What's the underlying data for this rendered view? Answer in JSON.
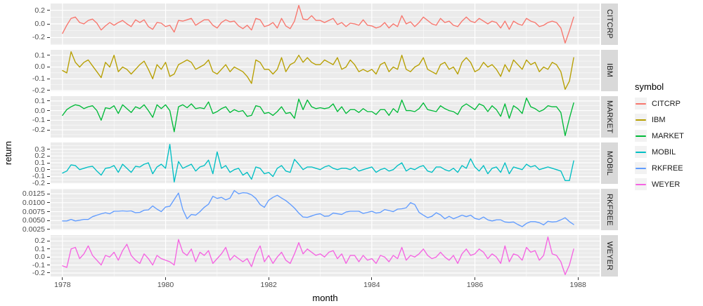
{
  "figure": {
    "xlabel": "month",
    "ylabel": "return",
    "legend_title": "symbol"
  },
  "colors": {
    "panel_bg": "#EBEBEB",
    "strip_bg": "#D9D9D9",
    "grid": "#FFFFFF",
    "axis_text": "#4D4D4D",
    "strip_text": "#1A1A1A",
    "legend_key_bg": "#F2F2F2"
  },
  "chart_data": {
    "type": "line",
    "title": "",
    "xlabel": "month",
    "ylabel": "return",
    "legend_title": "symbol",
    "legend_position": "right",
    "grid": true,
    "facet_layout": "rows, free y scales, strips on right",
    "x_axis": {
      "tick_labels": [
        "1978",
        "1980",
        "1982",
        "1984",
        "1986",
        "1988"
      ],
      "tick_values": [
        1978,
        1980,
        1982,
        1984,
        1986,
        1988
      ],
      "minor_tick_values": [
        1979,
        1981,
        1983,
        1985,
        1987
      ],
      "domain": [
        1977.77,
        1988.42
      ],
      "unit": "monthly observations, Jan 1978 - Dec 1987"
    },
    "x_months": {
      "start_year": 1978,
      "start_month": 1,
      "n": 120
    },
    "facets": [
      {
        "name": "CITCRP",
        "color": "#F8766D",
        "y_domain": [
          -0.308,
          0.298
        ],
        "y_ticks": [
          {
            "v": 0.2,
            "label": "0.2"
          },
          {
            "v": 0.0,
            "label": "0.0"
          },
          {
            "v": -0.2,
            "label": "-0.2"
          }
        ],
        "values": [
          -0.14,
          -0.02,
          0.08,
          0.1,
          0.02,
          0.0,
          0.05,
          0.07,
          0.01,
          -0.09,
          -0.03,
          0.02,
          -0.02,
          0.02,
          0.05,
          0.0,
          -0.04,
          0.06,
          0.02,
          0.06,
          -0.04,
          -0.08,
          0.02,
          0.01,
          -0.04,
          -0.02,
          -0.12,
          0.05,
          0.04,
          0.06,
          0.08,
          -0.02,
          0.02,
          0.06,
          0.06,
          -0.02,
          -0.06,
          0.02,
          0.06,
          0.03,
          0.04,
          -0.03,
          -0.07,
          -0.02,
          -0.09,
          0.08,
          0.06,
          -0.04,
          -0.02,
          0.02,
          -0.06,
          0.08,
          -0.03,
          -0.07,
          0.04,
          0.27,
          0.07,
          0.06,
          0.12,
          0.05,
          0.05,
          0.02,
          0.05,
          0.08,
          -0.01,
          0.02,
          -0.04,
          0.01,
          0.0,
          -0.02,
          0.06,
          -0.02,
          -0.03,
          -0.06,
          -0.04,
          0.02,
          -0.06,
          0.0,
          -0.04,
          0.12,
          0.0,
          0.03,
          -0.04,
          0.02,
          0.1,
          0.05,
          0.0,
          -0.02,
          0.08,
          0.02,
          0.04,
          -0.02,
          -0.04,
          0.04,
          0.1,
          0.04,
          0.02,
          0.08,
          0.04,
          0.0,
          0.04,
          0.02,
          -0.06,
          0.04,
          -0.08,
          0.04,
          0.0,
          -0.02,
          0.08,
          0.04,
          0.02,
          -0.04,
          -0.02,
          0.02,
          0.04,
          0.02,
          -0.06,
          -0.28,
          -0.1,
          0.1
        ]
      },
      {
        "name": "IBM",
        "color": "#B79F00",
        "y_domain": [
          -0.206,
          0.146
        ],
        "y_ticks": [
          {
            "v": 0.1,
            "label": "0.1"
          },
          {
            "v": 0.0,
            "label": "0.0"
          },
          {
            "v": -0.1,
            "label": "-0.1"
          },
          {
            "v": -0.2,
            "label": "-0.2"
          }
        ],
        "values": [
          -0.03,
          -0.05,
          0.13,
          0.04,
          0.0,
          0.04,
          0.06,
          0.01,
          -0.04,
          -0.09,
          0.04,
          0.0,
          0.1,
          -0.04,
          0.0,
          -0.02,
          -0.06,
          -0.02,
          0.02,
          0.05,
          -0.02,
          -0.1,
          0.02,
          -0.02,
          0.04,
          -0.08,
          -0.06,
          0.02,
          0.04,
          0.06,
          0.04,
          -0.02,
          0.0,
          0.02,
          0.06,
          -0.04,
          -0.06,
          -0.02,
          0.02,
          -0.04,
          0.0,
          -0.02,
          -0.04,
          -0.08,
          -0.14,
          0.06,
          0.04,
          -0.02,
          -0.02,
          -0.06,
          -0.02,
          0.08,
          -0.04,
          0.02,
          0.04,
          0.1,
          0.04,
          0.08,
          0.04,
          0.02,
          0.02,
          0.06,
          0.04,
          0.02,
          0.08,
          -0.02,
          0.0,
          0.06,
          0.02,
          -0.04,
          -0.02,
          -0.04,
          -0.02,
          -0.06,
          0.02,
          0.04,
          -0.04,
          0.0,
          -0.02,
          0.1,
          -0.02,
          -0.04,
          0.0,
          0.02,
          0.08,
          -0.02,
          -0.04,
          -0.06,
          0.02,
          0.04,
          -0.02,
          0.0,
          -0.06,
          0.04,
          0.08,
          0.04,
          -0.04,
          -0.02,
          0.04,
          0.0,
          0.02,
          -0.02,
          -0.08,
          0.02,
          -0.04,
          0.06,
          0.02,
          -0.02,
          0.06,
          0.02,
          0.04,
          -0.04,
          0.0,
          -0.02,
          0.04,
          0.02,
          -0.04,
          -0.19,
          -0.12,
          0.08
        ]
      },
      {
        "name": "MARKET",
        "color": "#00BA38",
        "y_domain": [
          -0.28,
          0.15
        ],
        "y_ticks": [
          {
            "v": 0.1,
            "label": "0.1"
          },
          {
            "v": 0.0,
            "label": "0.0"
          },
          {
            "v": -0.1,
            "label": "-0.1"
          },
          {
            "v": -0.2,
            "label": "-0.2"
          }
        ],
        "values": [
          -0.05,
          0.01,
          0.04,
          0.06,
          0.05,
          0.02,
          0.04,
          0.05,
          0.0,
          -0.1,
          0.03,
          0.02,
          0.05,
          -0.03,
          0.06,
          0.02,
          -0.02,
          0.04,
          0.02,
          0.06,
          0.0,
          -0.07,
          0.06,
          0.02,
          0.06,
          0.0,
          -0.22,
          0.04,
          0.06,
          0.03,
          0.07,
          0.02,
          0.03,
          0.02,
          0.09,
          -0.03,
          -0.01,
          0.02,
          0.04,
          -0.02,
          0.01,
          -0.01,
          0.0,
          -0.06,
          -0.05,
          0.05,
          0.04,
          -0.03,
          -0.02,
          -0.05,
          -0.01,
          0.04,
          -0.03,
          -0.02,
          -0.08,
          0.12,
          0.01,
          0.11,
          0.04,
          0.02,
          0.03,
          0.02,
          0.03,
          0.07,
          -0.01,
          0.04,
          -0.03,
          0.01,
          0.01,
          -0.02,
          0.02,
          -0.01,
          -0.01,
          -0.04,
          0.01,
          0.01,
          -0.05,
          0.02,
          -0.02,
          0.11,
          0.0,
          0.0,
          -0.01,
          0.02,
          0.08,
          0.01,
          0.0,
          -0.01,
          0.05,
          0.02,
          0.0,
          -0.01,
          -0.04,
          0.04,
          0.07,
          0.04,
          0.01,
          0.07,
          0.05,
          -0.01,
          0.05,
          0.01,
          -0.06,
          0.07,
          -0.08,
          0.05,
          0.02,
          -0.03,
          0.13,
          0.04,
          0.02,
          -0.01,
          0.01,
          0.05,
          0.04,
          0.04,
          -0.02,
          -0.26,
          -0.08,
          0.08
        ]
      },
      {
        "name": "MOBIL",
        "color": "#00BFC4",
        "y_domain": [
          -0.208,
          0.398
        ],
        "y_ticks": [
          {
            "v": 0.3,
            "label": "0.3"
          },
          {
            "v": 0.2,
            "label": "0.2"
          },
          {
            "v": 0.1,
            "label": "0.1"
          },
          {
            "v": 0.0,
            "label": "0.0"
          },
          {
            "v": -0.1,
            "label": "-0.1"
          },
          {
            "v": -0.2,
            "label": "-0.2"
          }
        ],
        "values": [
          -0.05,
          -0.02,
          0.07,
          0.06,
          0.0,
          0.02,
          0.04,
          0.05,
          -0.02,
          -0.08,
          0.02,
          0.03,
          0.06,
          -0.04,
          0.08,
          0.02,
          -0.04,
          0.05,
          0.04,
          0.08,
          0.1,
          -0.06,
          0.04,
          0.08,
          0.02,
          0.37,
          -0.18,
          0.12,
          0.02,
          0.05,
          0.08,
          -0.02,
          0.04,
          0.06,
          0.14,
          -0.06,
          0.26,
          0.02,
          0.06,
          -0.04,
          0.0,
          0.02,
          -0.08,
          -0.04,
          -0.14,
          0.04,
          0.02,
          -0.06,
          -0.04,
          -0.1,
          0.02,
          0.06,
          -0.02,
          -0.04,
          0.15,
          0.08,
          0.0,
          0.04,
          0.04,
          0.02,
          0.0,
          0.04,
          0.06,
          0.02,
          0.0,
          0.02,
          0.02,
          0.0,
          0.04,
          -0.02,
          0.0,
          0.02,
          0.04,
          -0.04,
          0.0,
          0.02,
          -0.02,
          0.0,
          0.06,
          0.1,
          -0.02,
          0.02,
          0.0,
          0.04,
          0.06,
          -0.02,
          -0.04,
          0.04,
          0.04,
          0.0,
          -0.02,
          0.02,
          -0.04,
          0.06,
          0.02,
          0.16,
          0.04,
          -0.02,
          0.06,
          -0.06,
          0.02,
          0.04,
          -0.04,
          0.1,
          -0.06,
          0.04,
          0.02,
          0.0,
          0.08,
          0.04,
          0.06,
          0.0,
          0.02,
          0.04,
          0.02,
          0.0,
          -0.02,
          -0.16,
          -0.16,
          0.13
        ]
      },
      {
        "name": "RKFREE",
        "color": "#619CFF",
        "y_domain": [
          0.0023,
          0.0139
        ],
        "y_ticks": [
          {
            "v": 0.0125,
            "label": "0.0125"
          },
          {
            "v": 0.01,
            "label": "0.0100"
          },
          {
            "v": 0.0075,
            "label": "0.0075"
          },
          {
            "v": 0.005,
            "label": "0.0050"
          },
          {
            "v": 0.0025,
            "label": "0.0025"
          }
        ],
        "values": [
          0.0049,
          0.0049,
          0.0053,
          0.0049,
          0.0051,
          0.0053,
          0.0053,
          0.0061,
          0.0065,
          0.0069,
          0.0072,
          0.0069,
          0.0076,
          0.0076,
          0.0077,
          0.0076,
          0.0077,
          0.0072,
          0.0073,
          0.0079,
          0.008,
          0.0091,
          0.0082,
          0.0075,
          0.0088,
          0.009,
          0.0109,
          0.0127,
          0.0081,
          0.0055,
          0.0067,
          0.0065,
          0.0075,
          0.0087,
          0.0096,
          0.0118,
          0.0112,
          0.0115,
          0.0108,
          0.0113,
          0.0134,
          0.0125,
          0.0128,
          0.0127,
          0.0122,
          0.0112,
          0.0095,
          0.0087,
          0.0107,
          0.0115,
          0.0121,
          0.0113,
          0.0106,
          0.0096,
          0.0085,
          0.0071,
          0.006,
          0.0059,
          0.0063,
          0.0067,
          0.0069,
          0.0062,
          0.0063,
          0.0071,
          0.0069,
          0.0067,
          0.0074,
          0.0076,
          0.0076,
          0.0076,
          0.007,
          0.0073,
          0.0076,
          0.0071,
          0.0073,
          0.0081,
          0.0078,
          0.0075,
          0.0082,
          0.0083,
          0.0086,
          0.01,
          0.0095,
          0.0073,
          0.0065,
          0.0058,
          0.0062,
          0.0072,
          0.0066,
          0.0055,
          0.0062,
          0.0055,
          0.006,
          0.0065,
          0.0061,
          0.0065,
          0.0056,
          0.0053,
          0.006,
          0.0052,
          0.0049,
          0.0052,
          0.0052,
          0.0046,
          0.0045,
          0.0046,
          0.0039,
          0.0033,
          0.0042,
          0.0047,
          0.0047,
          0.0044,
          0.0038,
          0.0048,
          0.0046,
          0.0047,
          0.0052,
          0.0058,
          0.0047,
          0.0039
        ]
      },
      {
        "name": "WEYER",
        "color": "#F564E2",
        "y_domain": [
          -0.244,
          0.274
        ],
        "y_ticks": [
          {
            "v": 0.2,
            "label": "0.2"
          },
          {
            "v": 0.1,
            "label": "0.1"
          },
          {
            "v": 0.0,
            "label": "0.0"
          },
          {
            "v": -0.1,
            "label": "-0.1"
          },
          {
            "v": -0.2,
            "label": "-0.2"
          }
        ],
        "values": [
          -0.11,
          -0.13,
          0.1,
          0.12,
          -0.02,
          0.04,
          0.14,
          0.02,
          -0.04,
          -0.1,
          0.02,
          0.0,
          0.06,
          -0.04,
          0.08,
          0.16,
          0.02,
          -0.04,
          -0.08,
          0.04,
          -0.02,
          -0.1,
          0.02,
          -0.02,
          -0.04,
          -0.06,
          -0.1,
          0.22,
          0.06,
          0.02,
          0.1,
          -0.06,
          0.06,
          0.02,
          0.08,
          -0.08,
          -0.02,
          0.04,
          0.12,
          -0.04,
          0.02,
          -0.02,
          -0.06,
          -0.02,
          -0.12,
          0.04,
          0.14,
          -0.06,
          0.02,
          -0.08,
          0.0,
          0.06,
          -0.04,
          -0.08,
          0.04,
          0.18,
          0.04,
          0.1,
          0.06,
          0.02,
          0.04,
          0.0,
          0.06,
          0.08,
          -0.02,
          0.04,
          -0.08,
          0.02,
          0.02,
          -0.06,
          0.02,
          -0.04,
          -0.02,
          -0.08,
          0.02,
          0.0,
          -0.06,
          0.02,
          -0.02,
          0.12,
          -0.04,
          0.02,
          0.0,
          0.04,
          0.1,
          0.02,
          -0.02,
          0.0,
          0.06,
          0.0,
          -0.04,
          0.02,
          -0.08,
          0.04,
          0.1,
          0.02,
          0.04,
          0.1,
          0.06,
          -0.02,
          0.04,
          0.0,
          -0.08,
          0.14,
          -0.06,
          0.04,
          0.02,
          -0.04,
          0.12,
          0.06,
          0.08,
          -0.04,
          0.02,
          0.25,
          0.04,
          0.02,
          -0.06,
          -0.22,
          -0.1,
          0.1
        ]
      }
    ]
  }
}
